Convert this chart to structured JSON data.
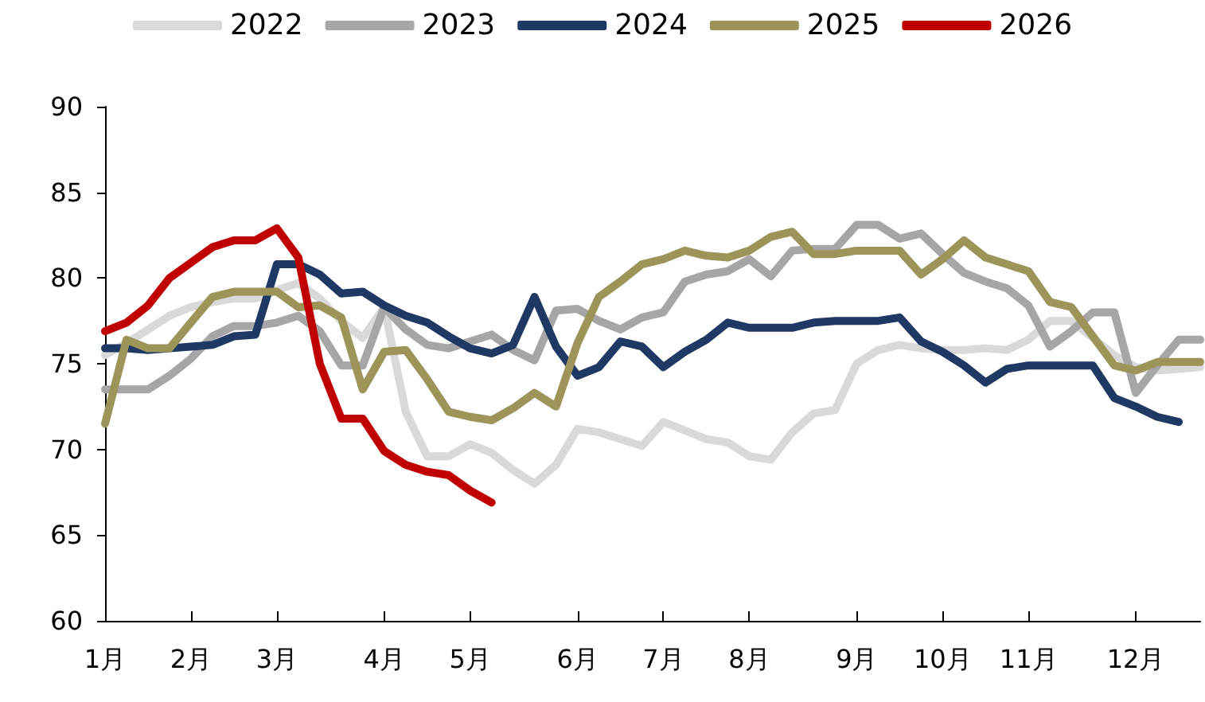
{
  "chart_data": {
    "type": "line",
    "categories": [
      "1月",
      null,
      null,
      null,
      "2月",
      null,
      null,
      null,
      "3月",
      null,
      null,
      null,
      null,
      "4月",
      null,
      null,
      null,
      "5月",
      null,
      null,
      null,
      null,
      "6月",
      null,
      null,
      null,
      "7月",
      null,
      null,
      null,
      "8月",
      null,
      null,
      null,
      null,
      "9月",
      null,
      null,
      null,
      "10月",
      null,
      null,
      null,
      "11月",
      null,
      null,
      null,
      null,
      "12月",
      null,
      null,
      null
    ],
    "ylim": [
      60,
      90
    ],
    "yticks": [
      60,
      65,
      70,
      75,
      80,
      85,
      90
    ],
    "grid": false,
    "legend": "top",
    "marker": "none",
    "line_style": "solid",
    "series": [
      {
        "name": "2022",
        "color": "#d9d9d9",
        "values": [
          75.5,
          76.2,
          77,
          77.8,
          78.3,
          78.6,
          78.8,
          78.8,
          79.3,
          79.7,
          78.8,
          77.5,
          76.5,
          78.3,
          72.2,
          69.6,
          69.6,
          70.3,
          69.8,
          68.8,
          68,
          69.1,
          71.2,
          71,
          70.6,
          70.2,
          71.6,
          71.1,
          70.6,
          70.4,
          69.6,
          69.4,
          71,
          72.1,
          72.3,
          75,
          75.8,
          76.1,
          75.9,
          75.8,
          75.8,
          75.9,
          75.8,
          76.4,
          77.5,
          77.5,
          76.5,
          75.5,
          74.8,
          74.6,
          74.7,
          74.8
        ]
      },
      {
        "name": "2023",
        "color": "#a6a6a6",
        "values": [
          73.5,
          73.5,
          73.5,
          74.3,
          75.3,
          76.6,
          77.2,
          77.2,
          77.4,
          77.8,
          76.9,
          74.9,
          74.9,
          78.3,
          77,
          76.1,
          75.9,
          76.3,
          76.7,
          75.8,
          75.2,
          78.1,
          78.2,
          77.5,
          77,
          77.7,
          78,
          79.8,
          80.2,
          80.4,
          81.1,
          80.1,
          81.6,
          81.7,
          81.7,
          83.1,
          83.1,
          82.3,
          82.6,
          81.4,
          80.3,
          79.8,
          79.4,
          78.4,
          76,
          76.9,
          78,
          78,
          73.3,
          74.9,
          76.4,
          76.4
        ]
      },
      {
        "name": "2024",
        "color": "#1f3864",
        "values": [
          75.9,
          75.9,
          75.8,
          75.9,
          76,
          76.1,
          76.6,
          76.7,
          80.8,
          80.8,
          80.2,
          79.1,
          79.2,
          78.4,
          77.8,
          77.4,
          76.6,
          75.9,
          75.6,
          76.1,
          78.9,
          76,
          74.3,
          74.8,
          76.3,
          76,
          74.8,
          75.7,
          76.4,
          77.4,
          77.1,
          77.1,
          77.1,
          77.4,
          77.5,
          77.5,
          77.5,
          77.7,
          76.3,
          75.7,
          74.9,
          73.9,
          74.7,
          74.9,
          74.9,
          74.9,
          74.9,
          73,
          72.5,
          71.9,
          71.6,
          null
        ]
      },
      {
        "name": "2025",
        "color": "#9c9459",
        "values": [
          71.5,
          76.4,
          75.9,
          75.9,
          77.4,
          78.9,
          79.2,
          79.2,
          79.2,
          78.3,
          78.4,
          77.7,
          73.5,
          75.7,
          75.8,
          74.1,
          72.2,
          71.9,
          71.7,
          72.4,
          73.3,
          72.5,
          76.2,
          78.9,
          79.8,
          80.8,
          81.1,
          81.6,
          81.3,
          81.2,
          81.6,
          82.4,
          82.7,
          81.4,
          81.4,
          81.6,
          81.6,
          81.6,
          80.2,
          81.1,
          82.2,
          81.2,
          80.8,
          80.4,
          78.6,
          78.3,
          76.6,
          74.9,
          74.6,
          75.1,
          75.1,
          75.1
        ]
      },
      {
        "name": "2026",
        "color": "#c00000",
        "values": [
          76.9,
          77.4,
          78.4,
          80,
          80.9,
          81.8,
          82.2,
          82.2,
          82.9,
          81.2,
          75,
          71.8,
          71.8,
          69.9,
          69.1,
          68.7,
          68.5,
          67.6,
          66.9,
          null,
          null,
          null,
          null,
          null,
          null,
          null,
          null,
          null,
          null,
          null,
          null,
          null,
          null,
          null,
          null,
          null,
          null,
          null,
          null,
          null,
          null,
          null,
          null,
          null,
          null,
          null,
          null,
          null,
          null,
          null,
          null,
          null
        ]
      }
    ]
  }
}
